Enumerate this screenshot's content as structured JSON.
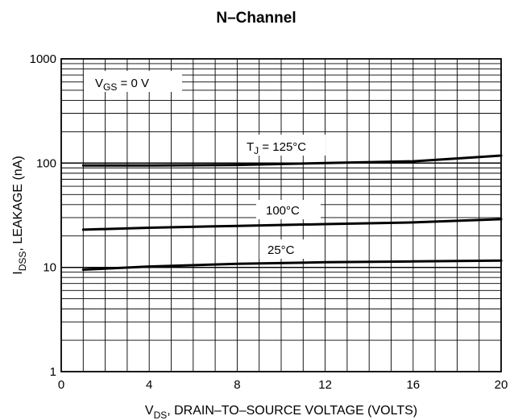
{
  "chart_data": {
    "type": "line",
    "title": "N–Channel",
    "xlabel": "V_DS, DRAIN–TO–SOURCE VOLTAGE (VOLTS)",
    "xlabel_main": "V",
    "xlabel_sub": "DS",
    "xlabel_rest": ", DRAIN–TO–SOURCE VOLTAGE (VOLTS)",
    "ylabel": "I_DSS, LEAKAGE (nA)",
    "ylabel_main": "I",
    "ylabel_sub": "DSS",
    "ylabel_rest": ", LEAKAGE (nA)",
    "x_scale": "linear",
    "y_scale": "log",
    "xlim": [
      0,
      20
    ],
    "ylim": [
      1,
      1000
    ],
    "x_ticks": [
      0,
      4,
      8,
      12,
      16,
      20
    ],
    "x_tick_labels": [
      "0",
      "4",
      "8",
      "12",
      "16",
      "20"
    ],
    "y_ticks": [
      1,
      10,
      100,
      1000
    ],
    "y_tick_labels": [
      "1",
      "10",
      "100",
      "1000"
    ],
    "grid": true,
    "line_color": "#000000",
    "conditions": {
      "main": "V",
      "sub": "GS",
      "rest": " = 0 V"
    },
    "series": [
      {
        "label_main": "T",
        "label_sub": "J",
        "label_rest": " = 125°C",
        "x": [
          1,
          4,
          8,
          12,
          16,
          20
        ],
        "y": [
          95,
          95,
          96,
          100,
          104,
          118
        ]
      },
      {
        "label_main": "100°C",
        "label_sub": "",
        "label_rest": "",
        "x": [
          1,
          4,
          8,
          12,
          16,
          20
        ],
        "y": [
          23,
          24,
          25,
          26,
          27,
          29
        ]
      },
      {
        "label_main": "25°C",
        "label_sub": "",
        "label_rest": "",
        "x": [
          1,
          4,
          8,
          12,
          16,
          20
        ],
        "y": [
          9.5,
          10.2,
          10.8,
          11.2,
          11.4,
          11.6
        ]
      }
    ]
  }
}
